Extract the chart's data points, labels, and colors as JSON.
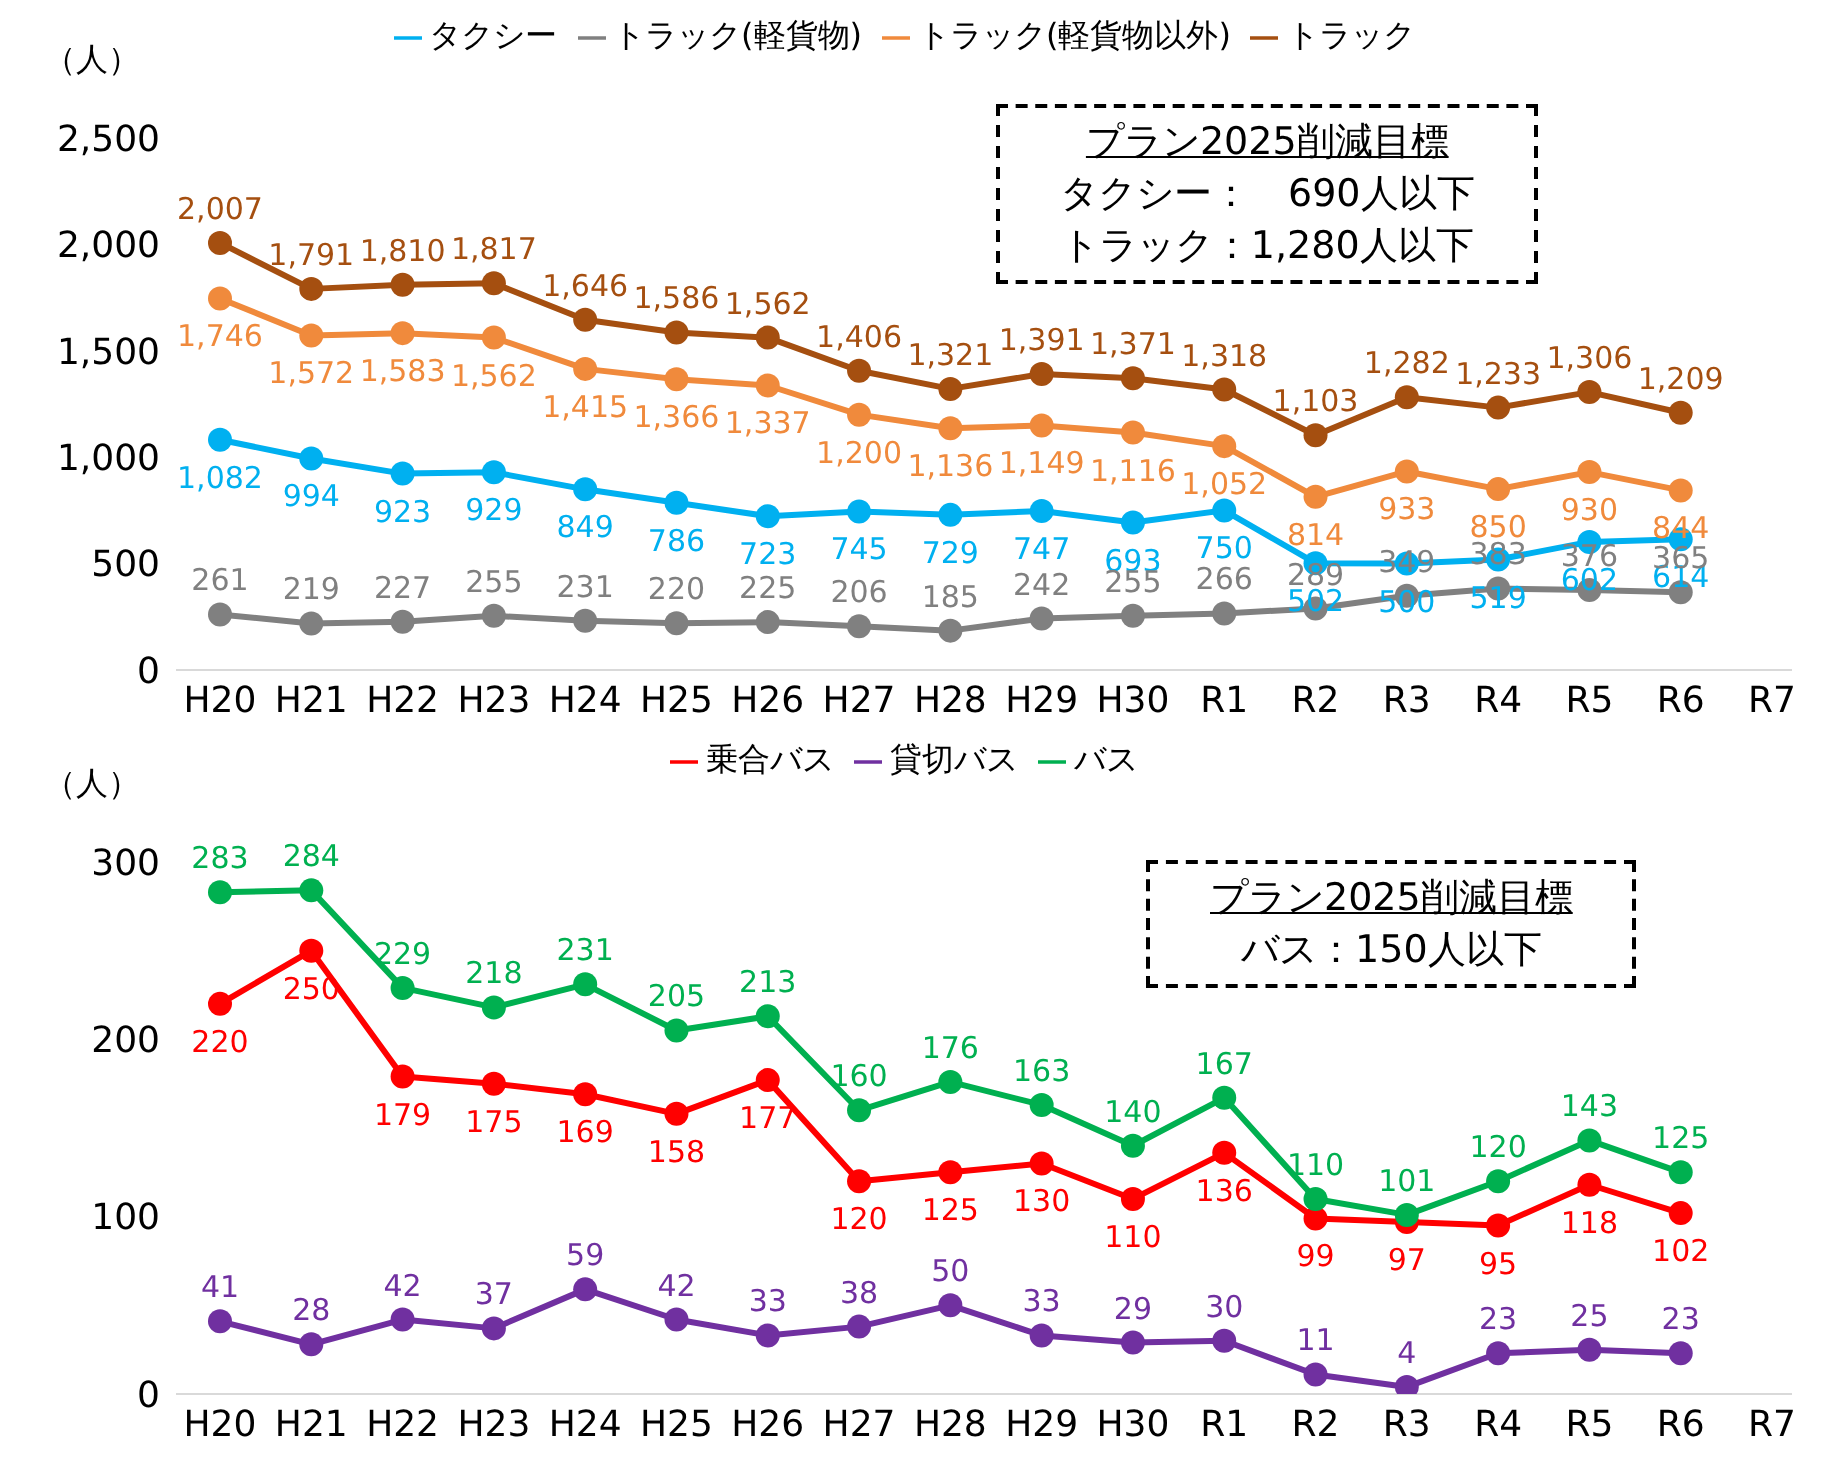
{
  "chart_data": [
    {
      "type": "line",
      "ylabel": "（人）",
      "categories": [
        "H20",
        "H21",
        "H22",
        "H23",
        "H24",
        "H25",
        "H26",
        "H27",
        "H28",
        "H29",
        "H30",
        "R1",
        "R2",
        "R3",
        "R4",
        "R5",
        "R6",
        "R7"
      ],
      "series": [
        {
          "name": "タクシー",
          "color": "#00b0f0",
          "values": [
            1082,
            994,
            923,
            929,
            849,
            786,
            723,
            745,
            729,
            747,
            693,
            750,
            502,
            500,
            519,
            602,
            614,
            null
          ],
          "value_labels": [
            "1,082",
            "994",
            "923",
            "929",
            "849",
            "786",
            "723",
            "745",
            "729",
            "747",
            "693",
            "750",
            "502",
            "500",
            "519",
            "602",
            "614",
            null
          ]
        },
        {
          "name": "トラック(軽貨物)",
          "color": "#808080",
          "values": [
            261,
            219,
            227,
            255,
            231,
            220,
            225,
            206,
            185,
            242,
            255,
            266,
            289,
            349,
            383,
            376,
            365,
            null
          ],
          "value_labels": [
            "261",
            "219",
            "227",
            "255",
            "231",
            "220",
            "225",
            "206",
            "185",
            "242",
            "255",
            "266",
            "289",
            "349",
            "383",
            "376",
            "365",
            null
          ]
        },
        {
          "name": "トラック(軽貨物以外)",
          "color": "#f08a3c",
          "values": [
            1746,
            1572,
            1583,
            1562,
            1415,
            1366,
            1337,
            1200,
            1136,
            1149,
            1116,
            1052,
            814,
            933,
            850,
            930,
            844,
            null
          ],
          "value_labels": [
            "1,746",
            "1,572",
            "1,583",
            "1,562",
            "1,415",
            "1,366",
            "1,337",
            "1,200",
            "1,136",
            "1,149",
            "1,116",
            "1,052",
            "814",
            "933",
            "850",
            "930",
            "844",
            null
          ]
        },
        {
          "name": "トラック",
          "color": "#a54f10",
          "values": [
            2007,
            1791,
            1810,
            1817,
            1646,
            1586,
            1562,
            1406,
            1321,
            1391,
            1371,
            1318,
            1103,
            1282,
            1233,
            1306,
            1209,
            null
          ],
          "value_labels": [
            "2,007",
            "1,791",
            "1,810",
            "1,817",
            "1,646",
            "1,586",
            "1,562",
            "1,406",
            "1,321",
            "1,391",
            "1,371",
            "1,318",
            "1,103",
            "1,282",
            "1,233",
            "1,306",
            "1,209",
            null
          ]
        }
      ],
      "ylim": [
        0,
        2500
      ],
      "yticks": [
        0,
        500,
        {
          "value": 1000,
          "label": "1,000"
        },
        {
          "value": 1500,
          "label": "1,500"
        },
        {
          "value": 2000,
          "label": "2,000"
        },
        {
          "value": 2500,
          "label": "2,500"
        }
      ],
      "grid": false,
      "legend": "top",
      "marker": "circle",
      "annotations": [
        "プラン2025削減目標",
        "タクシー：　690人以下",
        "トラック：1,280人以下"
      ]
    },
    {
      "type": "line",
      "ylabel": "（人）",
      "categories": [
        "H20",
        "H21",
        "H22",
        "H23",
        "H24",
        "H25",
        "H26",
        "H27",
        "H28",
        "H29",
        "H30",
        "R1",
        "R2",
        "R3",
        "R4",
        "R5",
        "R6",
        "R7"
      ],
      "series": [
        {
          "name": "乗合バス",
          "color": "#ff0000",
          "values": [
            220,
            250,
            179,
            175,
            169,
            158,
            177,
            120,
            125,
            130,
            110,
            136,
            99,
            97,
            95,
            118,
            102,
            null
          ]
        },
        {
          "name": "貸切バス",
          "color": "#7030a0",
          "values": [
            41,
            28,
            42,
            37,
            59,
            42,
            33,
            38,
            50,
            33,
            29,
            30,
            11,
            4,
            23,
            25,
            23,
            null
          ]
        },
        {
          "name": "バス",
          "color": "#00b050",
          "values": [
            283,
            284,
            229,
            218,
            231,
            205,
            213,
            160,
            176,
            163,
            140,
            167,
            110,
            101,
            120,
            143,
            125,
            null
          ]
        }
      ],
      "ylim": [
        0,
        300
      ],
      "yticks": [
        0,
        100,
        200,
        300
      ],
      "grid": false,
      "legend": "top",
      "marker": "circle",
      "data_labels": true,
      "annotations": [
        "プラン2025削減目標",
        "バス：150人以下"
      ]
    }
  ]
}
